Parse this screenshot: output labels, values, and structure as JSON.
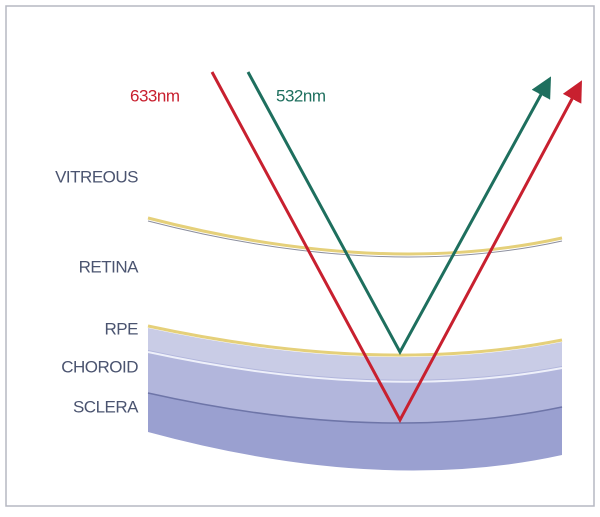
{
  "beams": [
    {
      "label": "633nm"
    },
    {
      "label": "532nm"
    }
  ],
  "layers": [
    "VITREOUS",
    "RETINA",
    "RPE",
    "CHOROID",
    "SCLERA"
  ]
}
